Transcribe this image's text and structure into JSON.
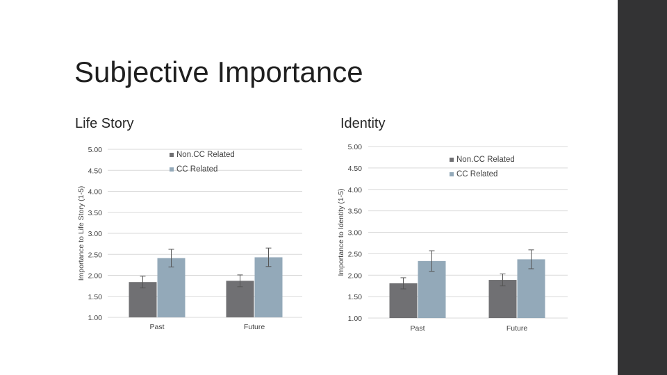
{
  "slide": {
    "title": "Subjective Importance",
    "subtitle_left": "Life Story",
    "subtitle_right": "Identity"
  },
  "colors": {
    "non_cc": "#707073",
    "cc": "#93a9b9",
    "sidebar": "#333334",
    "grid": "#d9d9d9",
    "error_bar": "#555555"
  },
  "chart_data": [
    {
      "type": "bar",
      "categories": [
        "Past",
        "Future"
      ],
      "ylabel": "Importance to Life Story (1-5)",
      "ylim": [
        1.0,
        5.0
      ],
      "yticks": [
        "1.00",
        "1.50",
        "2.00",
        "2.50",
        "3.00",
        "3.50",
        "4.00",
        "4.50",
        "5.00"
      ],
      "grid": true,
      "legend_position": "top-right",
      "series": [
        {
          "name": "Non.CC Related",
          "values": [
            1.84,
            1.87
          ],
          "error": [
            0.14,
            0.14
          ]
        },
        {
          "name": "CC Related",
          "values": [
            2.41,
            2.43
          ],
          "error": [
            0.21,
            0.22
          ]
        }
      ]
    },
    {
      "type": "bar",
      "categories": [
        "Past",
        "Future"
      ],
      "ylabel": "Importance to Identity (1-5)",
      "ylim": [
        1.0,
        5.0
      ],
      "yticks": [
        "1.00",
        "1.50",
        "2.00",
        "2.50",
        "3.00",
        "3.50",
        "4.00",
        "4.50",
        "5.00"
      ],
      "grid": true,
      "legend_position": "top-right",
      "series": [
        {
          "name": "Non.CC Related",
          "values": [
            1.81,
            1.89
          ],
          "error": [
            0.13,
            0.14
          ]
        },
        {
          "name": "CC Related",
          "values": [
            2.33,
            2.37
          ],
          "error": [
            0.24,
            0.22
          ]
        }
      ]
    }
  ]
}
